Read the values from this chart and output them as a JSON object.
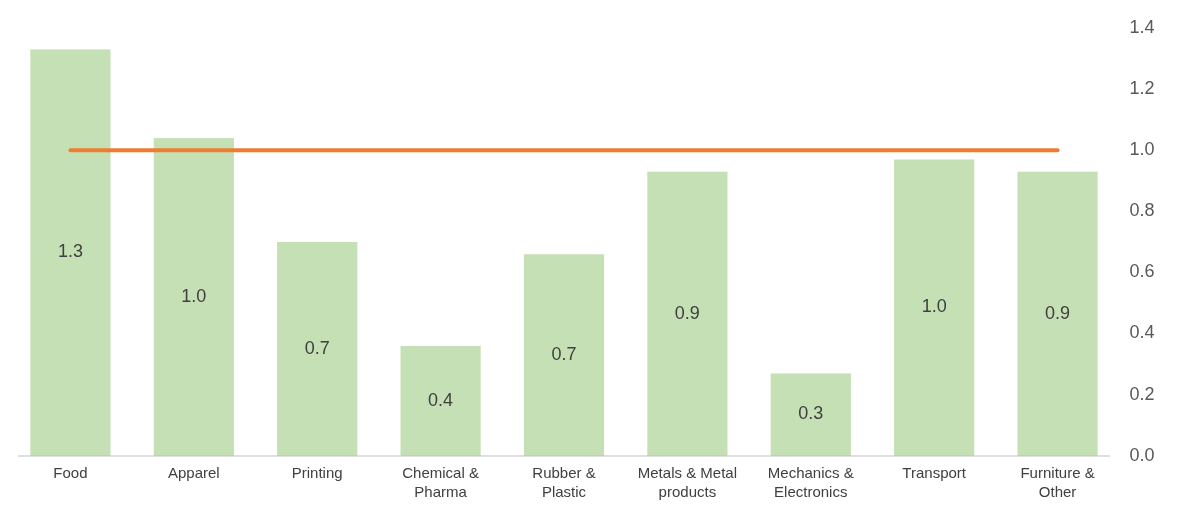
{
  "chart_data": {
    "type": "bar",
    "categories": [
      "Food",
      "Apparel",
      "Printing",
      "Chemical & Pharma",
      "Rubber & Plastic",
      "Metals & Metal products",
      "Mechanics & Electronics",
      "Transport",
      "Furniture & Other"
    ],
    "series": [
      {
        "color": "#c5e0b4",
        "values": [
          1.33,
          1.04,
          0.7,
          0.36,
          0.66,
          0.93,
          0.27,
          0.97,
          0.93
        ],
        "value_labels": [
          "1.3",
          "1.0",
          "0.7",
          "0.4",
          "0.7",
          "0.9",
          "0.3",
          "1.0",
          "0.9"
        ]
      },
      {
        "type": "line",
        "color": "#ed7d31",
        "values": [
          1.0,
          1.0,
          1.0,
          1.0,
          1.0,
          1.0,
          1.0,
          1.0,
          1.0
        ]
      }
    ],
    "ylim": [
      0,
      1.4
    ],
    "yticks": [
      {
        "value": 0,
        "label": "0.0"
      },
      {
        "value": 0.2,
        "label": "0.2"
      },
      {
        "value": 0.4,
        "label": "0.4"
      },
      {
        "value": 0.6,
        "label": "0.6"
      },
      {
        "value": 0.8,
        "label": "0.8"
      },
      {
        "value": 1,
        "label": "1.0"
      },
      {
        "value": 1.2,
        "label": "1.2"
      },
      {
        "value": 1.4,
        "label": "1.4"
      }
    ],
    "grid": false,
    "marker": "none",
    "line_style": "solid"
  }
}
